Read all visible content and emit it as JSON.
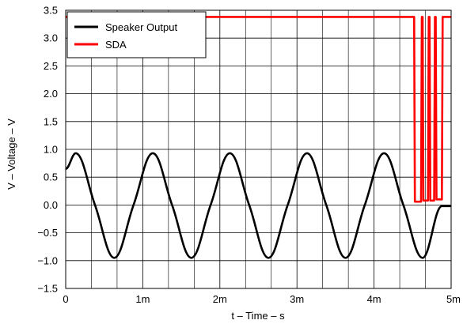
{
  "chart_data": {
    "type": "line",
    "title": "",
    "xlabel": "t – Time – s",
    "ylabel": "V – Voltage – V",
    "xlim": [
      0,
      0.005
    ],
    "ylim": [
      -1.5,
      3.5
    ],
    "grid": true,
    "x_ticks": [
      {
        "value": 0,
        "label": "0"
      },
      {
        "value": 0.001,
        "label": "1m"
      },
      {
        "value": 0.002,
        "label": "2m"
      },
      {
        "value": 0.003,
        "label": "3m"
      },
      {
        "value": 0.004,
        "label": "4m"
      },
      {
        "value": 0.005,
        "label": "5m"
      }
    ],
    "y_ticks": [
      {
        "value": -1.5,
        "label": "−1.5"
      },
      {
        "value": -1.0,
        "label": "−1.0"
      },
      {
        "value": -0.5,
        "label": "−0.5"
      },
      {
        "value": 0.0,
        "label": "0.0"
      },
      {
        "value": 0.5,
        "label": "0.5"
      },
      {
        "value": 1.0,
        "label": "1.0"
      },
      {
        "value": 1.5,
        "label": "1.5"
      },
      {
        "value": 2.0,
        "label": "2.0"
      },
      {
        "value": 2.5,
        "label": "2.5"
      },
      {
        "value": 3.0,
        "label": "3.0"
      },
      {
        "value": 3.5,
        "label": "3.5"
      }
    ],
    "legend_position": "top-left",
    "series": [
      {
        "name": "Speaker Output",
        "color": "#000000",
        "x": [
          0,
          0.00013,
          0.00038,
          0.00063,
          0.00088,
          0.00113,
          0.00138,
          0.00163,
          0.00188,
          0.00213,
          0.00238,
          0.00263,
          0.00288,
          0.00313,
          0.00338,
          0.00363,
          0.00388,
          0.00413,
          0.00438,
          0.00463,
          0.00488,
          0.005
        ],
        "y": [
          0.65,
          0.93,
          0.0,
          -0.95,
          0.0,
          0.93,
          0.0,
          -0.95,
          0.0,
          0.93,
          0.0,
          -0.95,
          0.0,
          0.93,
          0.0,
          -0.95,
          0.0,
          0.93,
          0.0,
          -0.95,
          -0.02,
          -0.02
        ]
      },
      {
        "name": "SDA",
        "color": "#ff0000",
        "x": [
          0,
          0.00452,
          0.00453,
          0.00461,
          0.00462,
          0.00463,
          0.00464,
          0.0047,
          0.00471,
          0.00472,
          0.00473,
          0.00478,
          0.00479,
          0.0048,
          0.00481,
          0.00488,
          0.00489,
          0.005
        ],
        "y": [
          3.38,
          3.38,
          0.06,
          0.06,
          3.38,
          3.38,
          0.08,
          0.08,
          3.38,
          3.38,
          0.08,
          0.08,
          3.38,
          3.38,
          0.1,
          0.1,
          3.38,
          3.38
        ]
      }
    ]
  }
}
